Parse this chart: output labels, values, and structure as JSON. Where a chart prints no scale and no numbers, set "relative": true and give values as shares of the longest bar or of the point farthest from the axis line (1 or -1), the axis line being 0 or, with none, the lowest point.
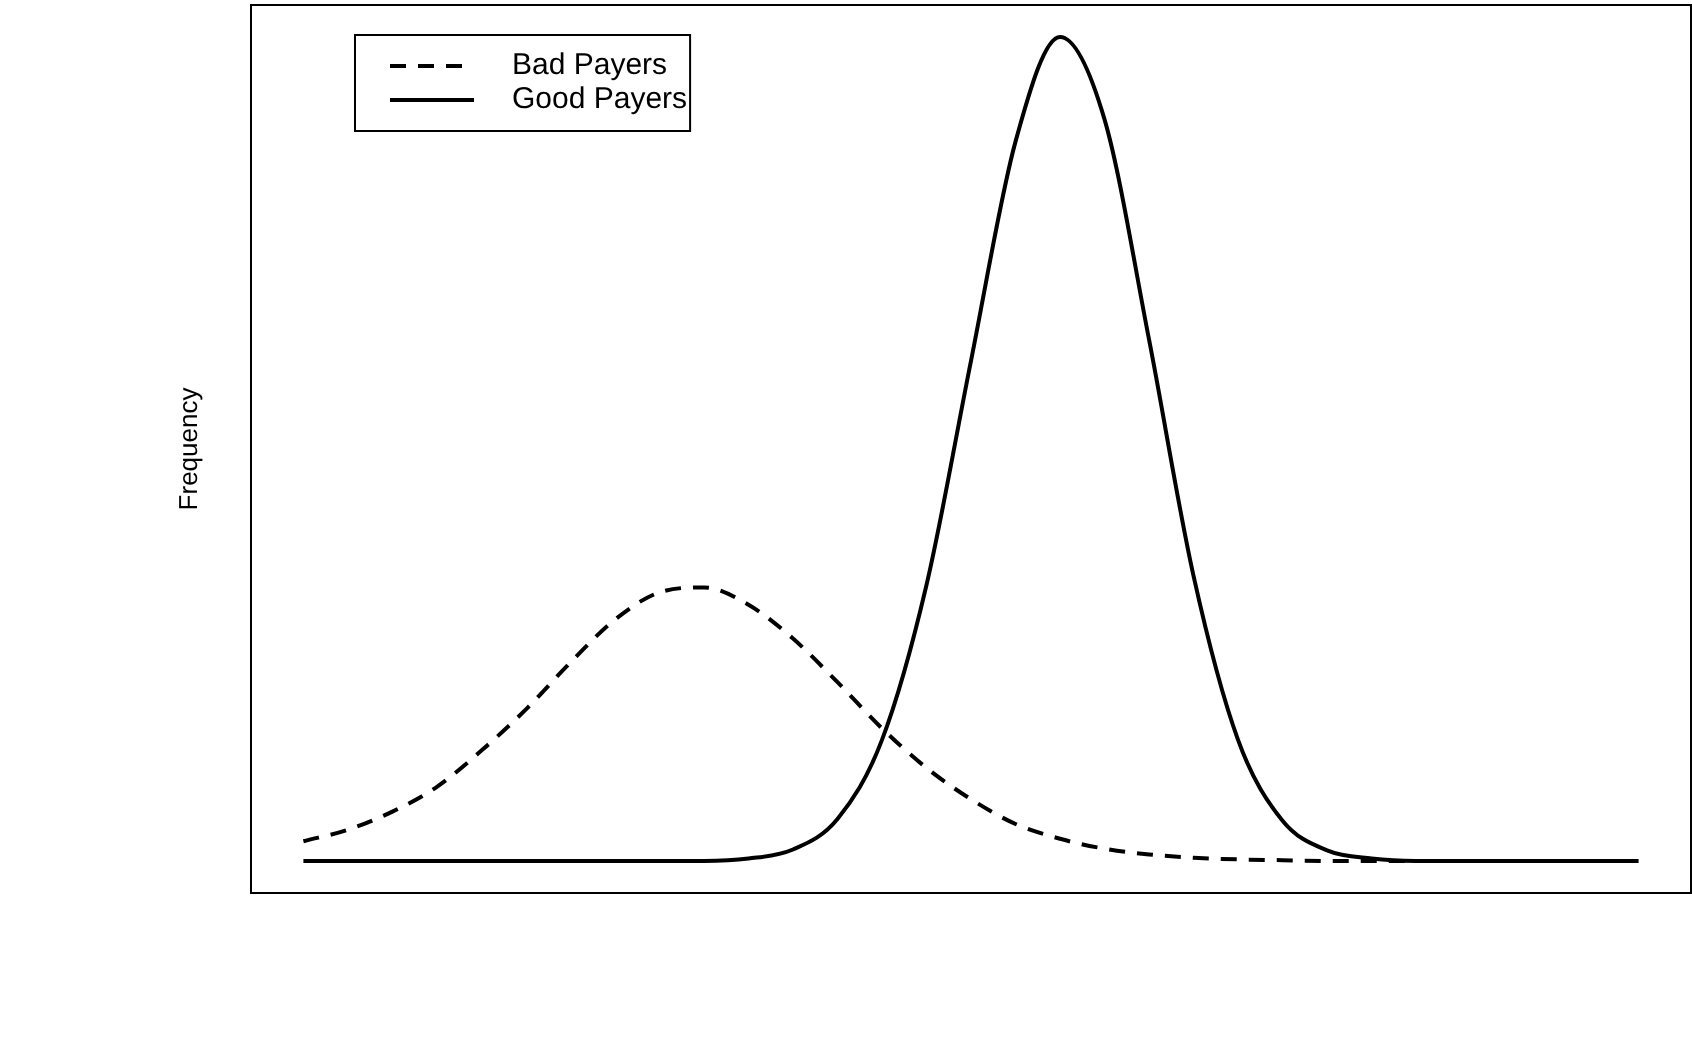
{
  "chart_data": {
    "type": "line",
    "relative": true,
    "ylabel": "Frequency",
    "legend": "top left",
    "marker": "none",
    "categories": [
      null,
      null,
      null,
      null,
      null,
      null,
      null,
      null,
      null,
      null,
      null,
      null,
      null,
      null,
      null,
      null,
      null,
      null,
      null,
      null,
      null,
      null,
      null,
      null,
      null,
      null,
      null,
      null,
      null,
      null,
      null
    ],
    "series": [
      {
        "name": "Bad Payers",
        "color": "#000000",
        "line_style": "dashed",
        "values": [
          0.024,
          0.038,
          0.06,
          0.09,
          0.134,
          0.184,
          0.241,
          0.293,
          0.326,
          0.332,
          0.311,
          0.27,
          0.217,
          0.161,
          0.113,
          0.075,
          0.045,
          0.027,
          0.015,
          0.008,
          0.004,
          0.002,
          0.001,
          0,
          0,
          0,
          0,
          0,
          0,
          0,
          0
        ]
      },
      {
        "name": "Good Payers",
        "color": "#000000",
        "line_style": "solid",
        "values": [
          0,
          0,
          0,
          0,
          0,
          0,
          0,
          0,
          0,
          0,
          0.003,
          0.014,
          0.051,
          0.147,
          0.335,
          0.607,
          0.873,
          1,
          0.9,
          0.633,
          0.346,
          0.147,
          0.049,
          0.013,
          0.003,
          0,
          0,
          0,
          0,
          0,
          0
        ]
      }
    ]
  }
}
